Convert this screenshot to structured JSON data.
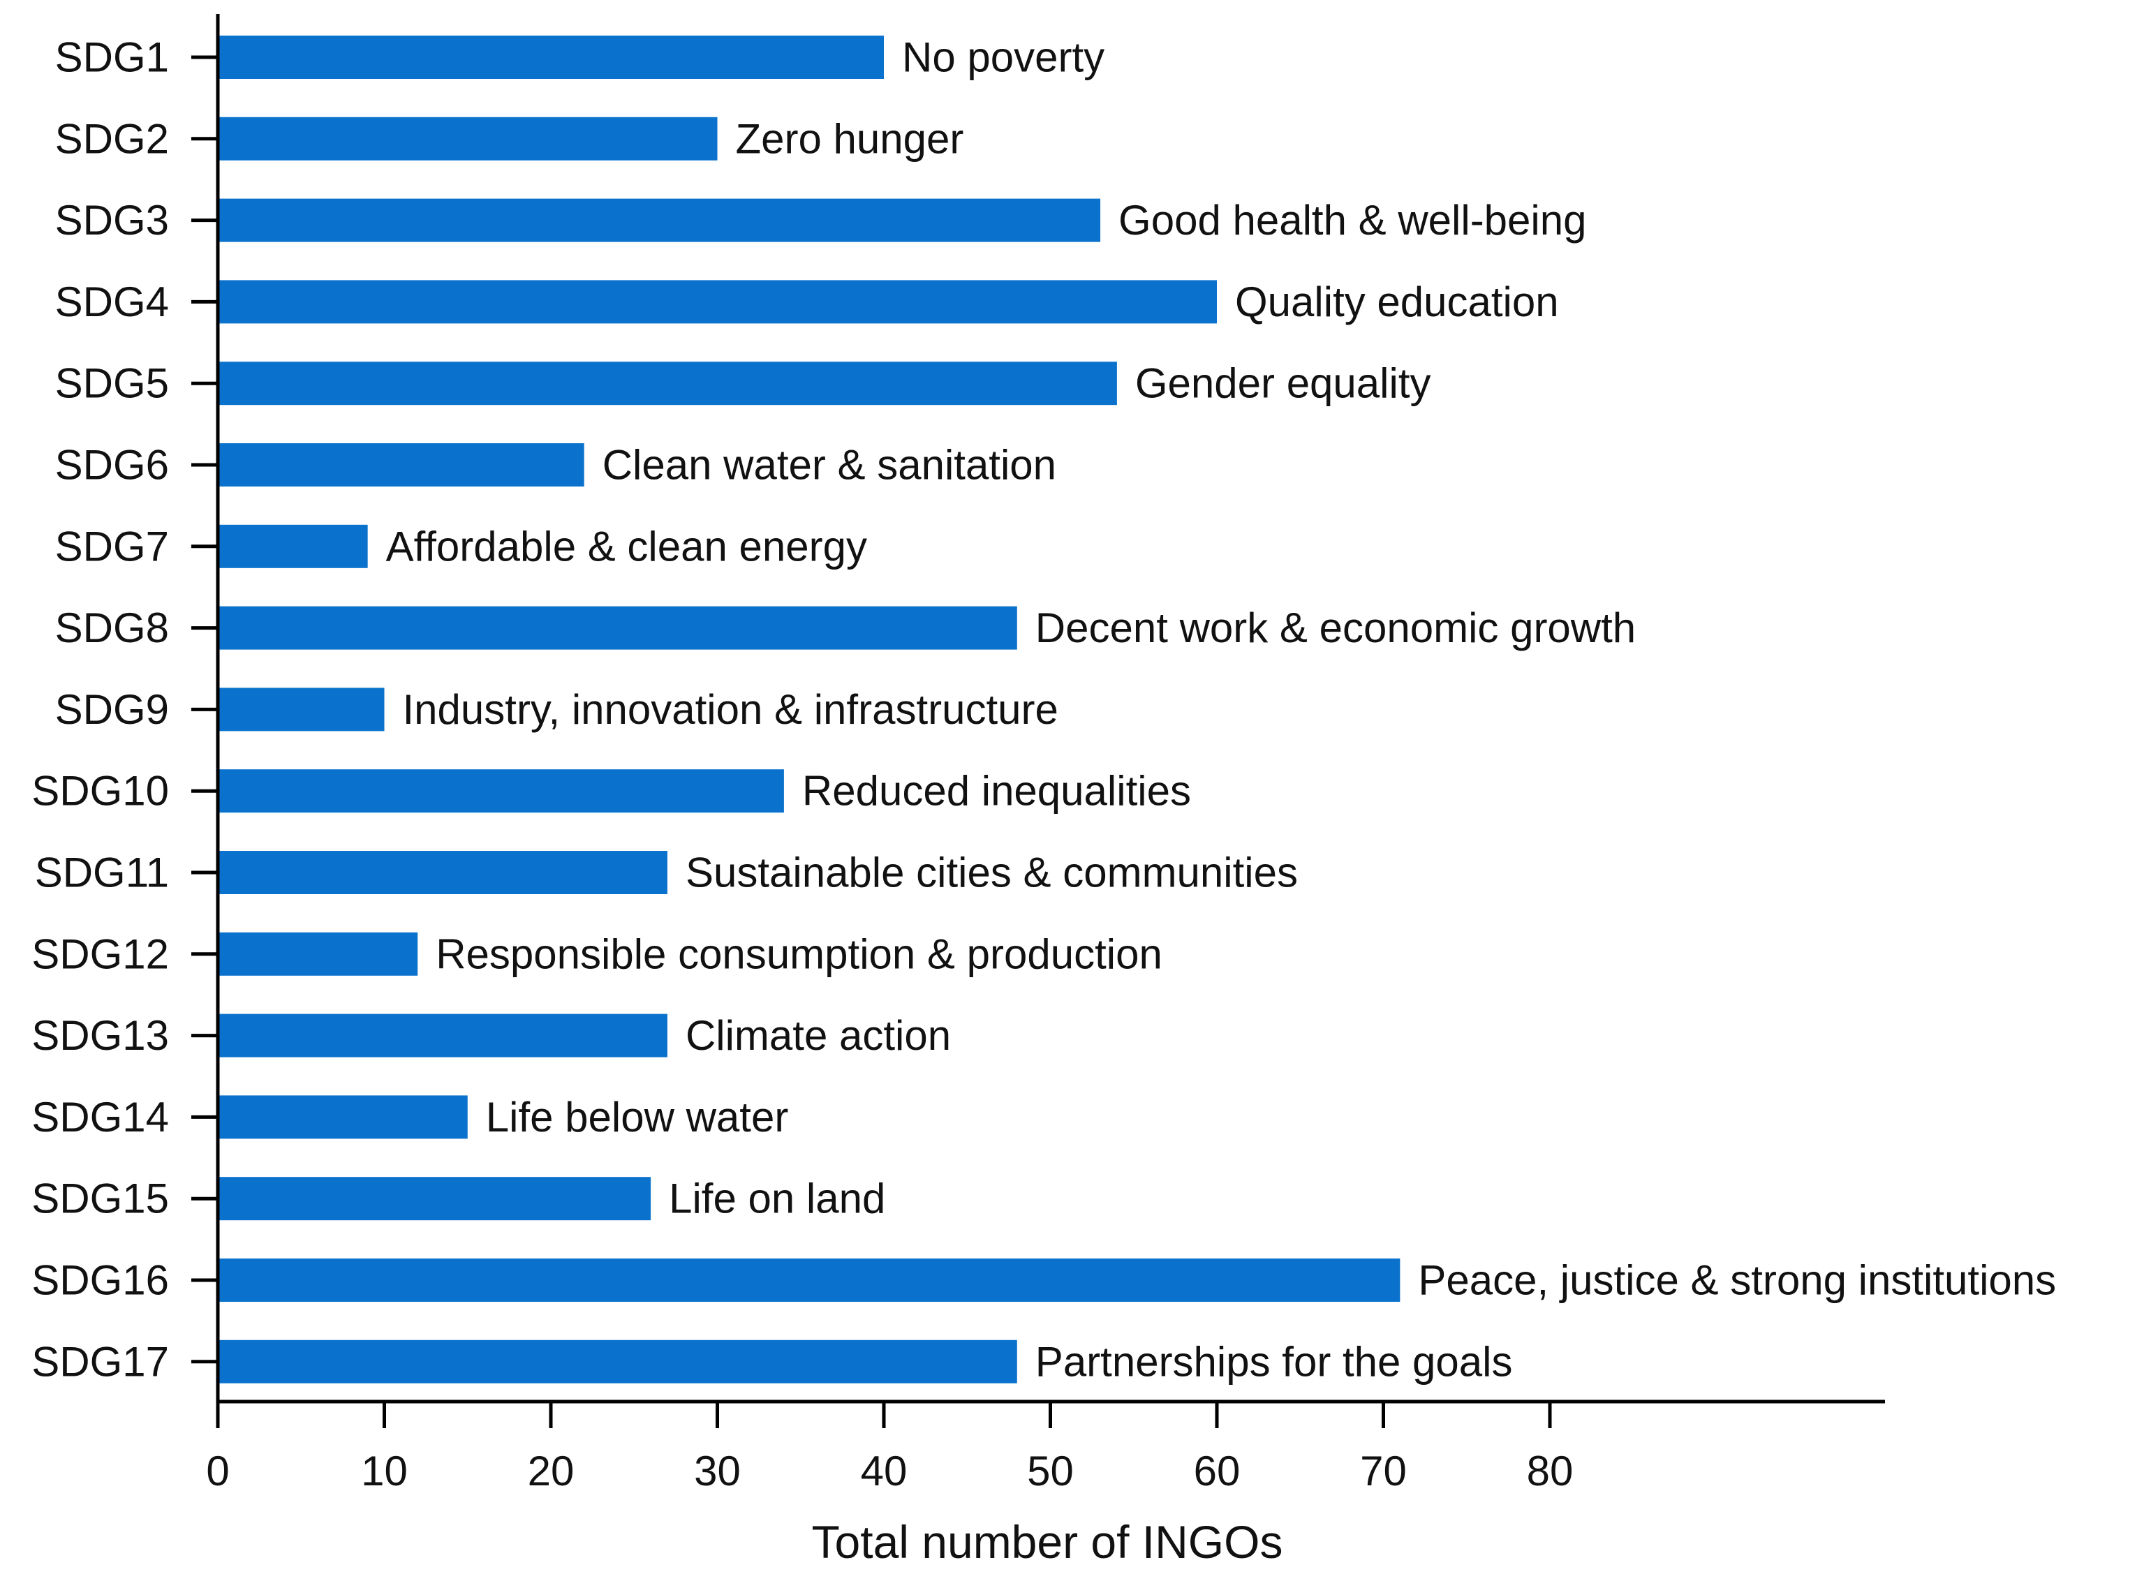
{
  "chart_data": {
    "type": "bar",
    "orientation": "horizontal",
    "title": "",
    "xlabel": "Total number of INGOs",
    "ylabel": "",
    "xlim": [
      0,
      100
    ],
    "xticks": [
      0,
      10,
      20,
      30,
      40,
      50,
      60,
      70,
      80
    ],
    "bar_color": "#0A72CC",
    "categories": [
      "SDG1",
      "SDG2",
      "SDG3",
      "SDG4",
      "SDG5",
      "SDG6",
      "SDG7",
      "SDG8",
      "SDG9",
      "SDG10",
      "SDG11",
      "SDG12",
      "SDG13",
      "SDG14",
      "SDG15",
      "SDG16",
      "SDG17"
    ],
    "values": [
      40,
      30,
      53,
      60,
      54,
      22,
      9,
      48,
      10,
      34,
      27,
      12,
      27,
      15,
      26,
      71,
      48
    ],
    "bar_labels": [
      "No poverty",
      "Zero hunger",
      "Good health & well-being",
      "Quality education",
      "Gender equality",
      "Clean water & sanitation",
      "Affordable & clean energy",
      "Decent work & economic growth",
      "Industry, innovation & infrastructure",
      "Reduced inequalities",
      "Sustainable cities & communities",
      "Responsible consumption & production",
      "Climate action",
      "Life below water",
      "Life on land",
      "Peace, justice & strong institutions",
      "Partnerships for the goals"
    ],
    "grid": false,
    "legend": "none"
  }
}
